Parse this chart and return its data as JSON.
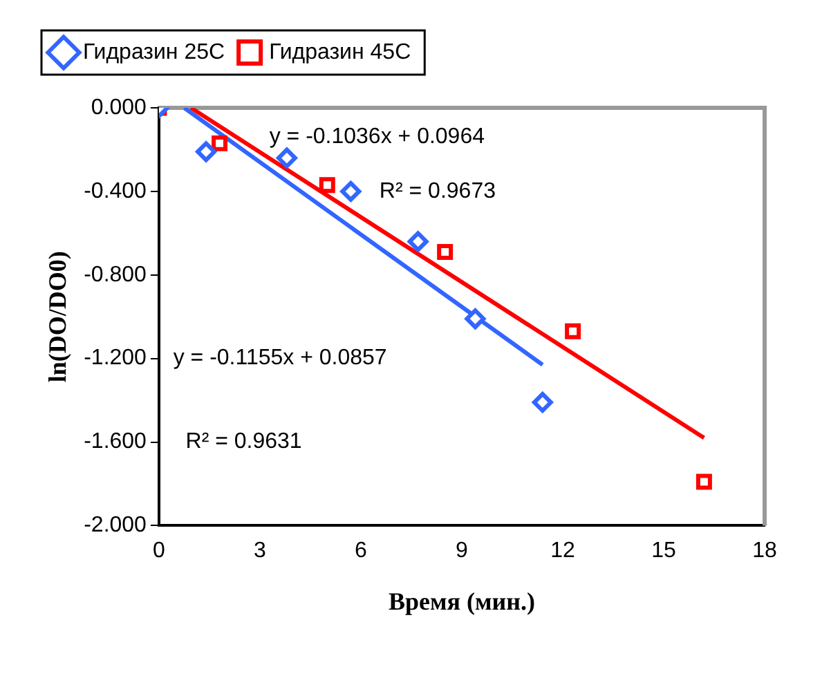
{
  "chart_data": {
    "type": "scatter",
    "xlabel": "Время (мин.)",
    "ylabel": "ln(DO/DO0)",
    "xlim": [
      0,
      18
    ],
    "xticks": [
      0,
      3,
      6,
      9,
      12,
      15,
      18
    ],
    "ylim": [
      -2,
      0
    ],
    "yticks": [
      {
        "value": 0,
        "label": "0.000"
      },
      {
        "value": -0.4,
        "label": "-0.400"
      },
      {
        "value": -0.8,
        "label": "-0.800"
      },
      {
        "value": -1.2,
        "label": "-1.200"
      },
      {
        "value": -1.6,
        "label": "-1.600"
      },
      {
        "value": -2,
        "label": "-2.000"
      }
    ],
    "grid": false,
    "legend": "top left",
    "series": [
      {
        "name": "Гидразин 25C",
        "color": "#3366ff",
        "marker": "diamond",
        "x": [
          0,
          1.4,
          3.8,
          5.7,
          7.7,
          9.4,
          11.4
        ],
        "values": [
          0,
          -0.21,
          -0.24,
          -0.4,
          -0.64,
          -1.01,
          -1.41
        ]
      },
      {
        "name": "Гидразин 45C",
        "color": "#ff0000",
        "marker": "square",
        "x": [
          0,
          1.8,
          5.0,
          8.5,
          12.3,
          16.2
        ],
        "values": [
          0,
          -0.17,
          -0.37,
          -0.69,
          -1.07,
          -1.79
        ]
      },
      {
        "type": "line",
        "color": "#3366ff",
        "marker": "none",
        "x": [
          0.75,
          11.4
        ],
        "values": [
          0,
          -1.23
        ]
      },
      {
        "type": "line",
        "color": "#ff0000",
        "marker": "none",
        "x": [
          0.95,
          16.2
        ],
        "values": [
          0,
          -1.58
        ]
      }
    ],
    "annotations": [
      "y = -0.1036x + 0.0964",
      "R² = 0.9673",
      "y = -0.1155x + 0.0857",
      "R² = 0.9631"
    ]
  }
}
